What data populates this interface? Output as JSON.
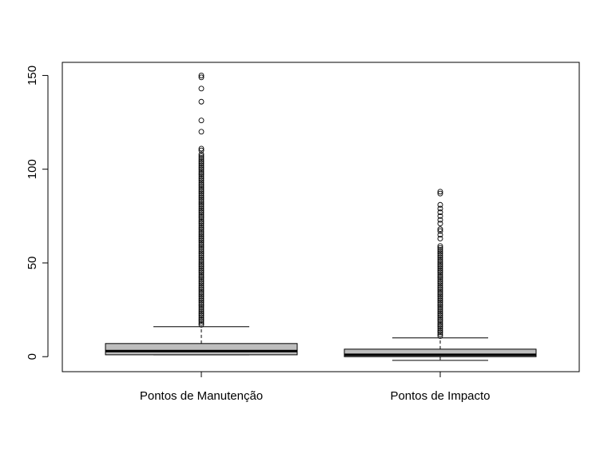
{
  "chart_data": {
    "type": "boxplot",
    "title": "",
    "xlabel": "",
    "ylabel": "",
    "ylim": [
      -8,
      157
    ],
    "yticks": [
      0,
      50,
      100,
      150
    ],
    "categories": [
      "Pontos de Manutenção",
      "Pontos de Impacto"
    ],
    "box_fill": "#bebebe",
    "series": [
      {
        "whisker_low": 1,
        "q1": 1,
        "median": 3,
        "q3": 7,
        "whisker_high": 16,
        "outliers": [
          17,
          18,
          19,
          20,
          21,
          22,
          23,
          24,
          25,
          26,
          27,
          28,
          29,
          30,
          31,
          32,
          33,
          34,
          35,
          36,
          37,
          38,
          39,
          40,
          41,
          42,
          43,
          44,
          45,
          46,
          47,
          48,
          49,
          50,
          51,
          52,
          53,
          54,
          55,
          56,
          57,
          58,
          59,
          60,
          61,
          62,
          63,
          64,
          65,
          66,
          67,
          68,
          69,
          70,
          71,
          72,
          73,
          74,
          75,
          76,
          77,
          78,
          79,
          80,
          81,
          82,
          83,
          84,
          85,
          86,
          87,
          88,
          89,
          90,
          91,
          92,
          93,
          94,
          95,
          96,
          97,
          98,
          99,
          100,
          101,
          102,
          103,
          104,
          105,
          106,
          107,
          108,
          110,
          111,
          120,
          126,
          136,
          143,
          149,
          150
        ]
      },
      {
        "whisker_low": -2,
        "q1": 0,
        "median": 1,
        "q3": 4,
        "whisker_high": 10,
        "outliers": [
          11,
          12,
          13,
          14,
          15,
          16,
          17,
          18,
          19,
          20,
          21,
          22,
          23,
          24,
          25,
          26,
          27,
          28,
          29,
          30,
          31,
          32,
          33,
          34,
          35,
          36,
          37,
          38,
          39,
          40,
          41,
          42,
          43,
          44,
          45,
          46,
          47,
          48,
          49,
          50,
          51,
          52,
          53,
          54,
          55,
          56,
          57,
          58,
          59,
          63,
          65,
          67,
          68,
          71,
          73,
          75,
          77,
          79,
          81,
          87,
          88
        ]
      }
    ]
  }
}
